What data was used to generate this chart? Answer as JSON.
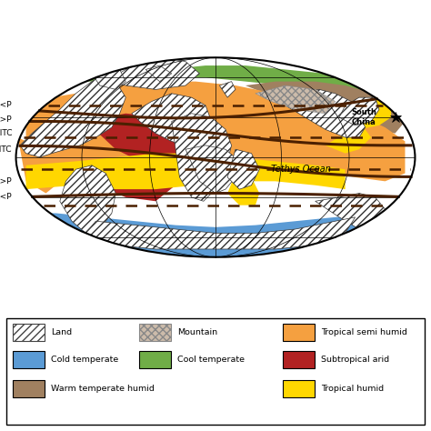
{
  "colors": {
    "tropical_semi_humid": "#F5A040",
    "cold_temperate": "#5B9BD5",
    "cool_temperate": "#70AD47",
    "subtropical_arid": "#B22222",
    "warm_temperate_humid": "#A08060",
    "tropical_humid": "#FFD700",
    "mountain": "#B0A090",
    "ocean": "#FFFFFF",
    "itc_curve": "#4B2000",
    "dashed_line": "#4B2000",
    "grid": "#000000",
    "land_hatch": "#444444",
    "land_face": "#FFFFFF"
  },
  "labels": {
    "ElessP_top": "E<P",
    "EgreaterP_top": "E>P",
    "NITC": "NITC",
    "SITC": "SITC",
    "EgreaterP_bot": "E>P",
    "ElessP_bot": "E<P",
    "tethys": "Tethys Ocean",
    "south_china": "South\nChina"
  },
  "legend": [
    {
      "label": "Land",
      "facecolor": "#FFFFFF",
      "hatch": "////",
      "edgecolor": "#444444"
    },
    {
      "label": "Mountain",
      "facecolor": "#CCBBAA",
      "hatch": "xxxx",
      "edgecolor": "#888888"
    },
    {
      "label": "Tropical semi humid",
      "facecolor": "#F5A040",
      "hatch": "",
      "edgecolor": "black"
    },
    {
      "label": "Cold temperate",
      "facecolor": "#5B9BD5",
      "hatch": "",
      "edgecolor": "black"
    },
    {
      "label": "Cool temperate",
      "facecolor": "#70AD47",
      "hatch": "",
      "edgecolor": "black"
    },
    {
      "label": "Subtropical arid",
      "facecolor": "#B22222",
      "hatch": "",
      "edgecolor": "black"
    },
    {
      "label": "Warm temperate humid",
      "facecolor": "#A08060",
      "hatch": "",
      "edgecolor": "black"
    },
    {
      "label": "Tropical humid",
      "facecolor": "#FFD700",
      "hatch": "",
      "edgecolor": "black"
    }
  ]
}
